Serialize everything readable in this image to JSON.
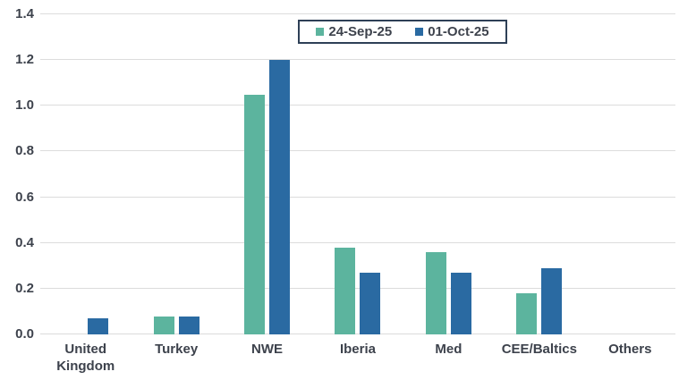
{
  "chart_data": {
    "type": "bar",
    "title": "",
    "xlabel": "",
    "ylabel": "",
    "categories": [
      "United Kingdom",
      "Turkey",
      "NWE",
      "Iberia",
      "Med",
      "CEE/Baltics",
      "Others"
    ],
    "series": [
      {
        "name": "24-Sep-25",
        "color": "#5cb49e",
        "values": [
          0,
          0.08,
          1.05,
          0.38,
          0.36,
          0.18,
          0
        ]
      },
      {
        "name": "01-Oct-25",
        "color": "#2a6aa2",
        "values": [
          0.07,
          0.08,
          1.2,
          0.27,
          0.27,
          0.29,
          0
        ]
      }
    ],
    "ylim": [
      0,
      1.4
    ],
    "y_ticks": [
      "0.0",
      "0.2",
      "0.4",
      "0.6",
      "0.8",
      "1.0",
      "1.2",
      "1.4"
    ],
    "grid": "horizontal",
    "legend_position": "top-center"
  },
  "colors": {
    "background": "#ffffff",
    "gridline": "#dcdcdc",
    "axis_text": "#3d424c",
    "legend_border": "#2e4057"
  }
}
